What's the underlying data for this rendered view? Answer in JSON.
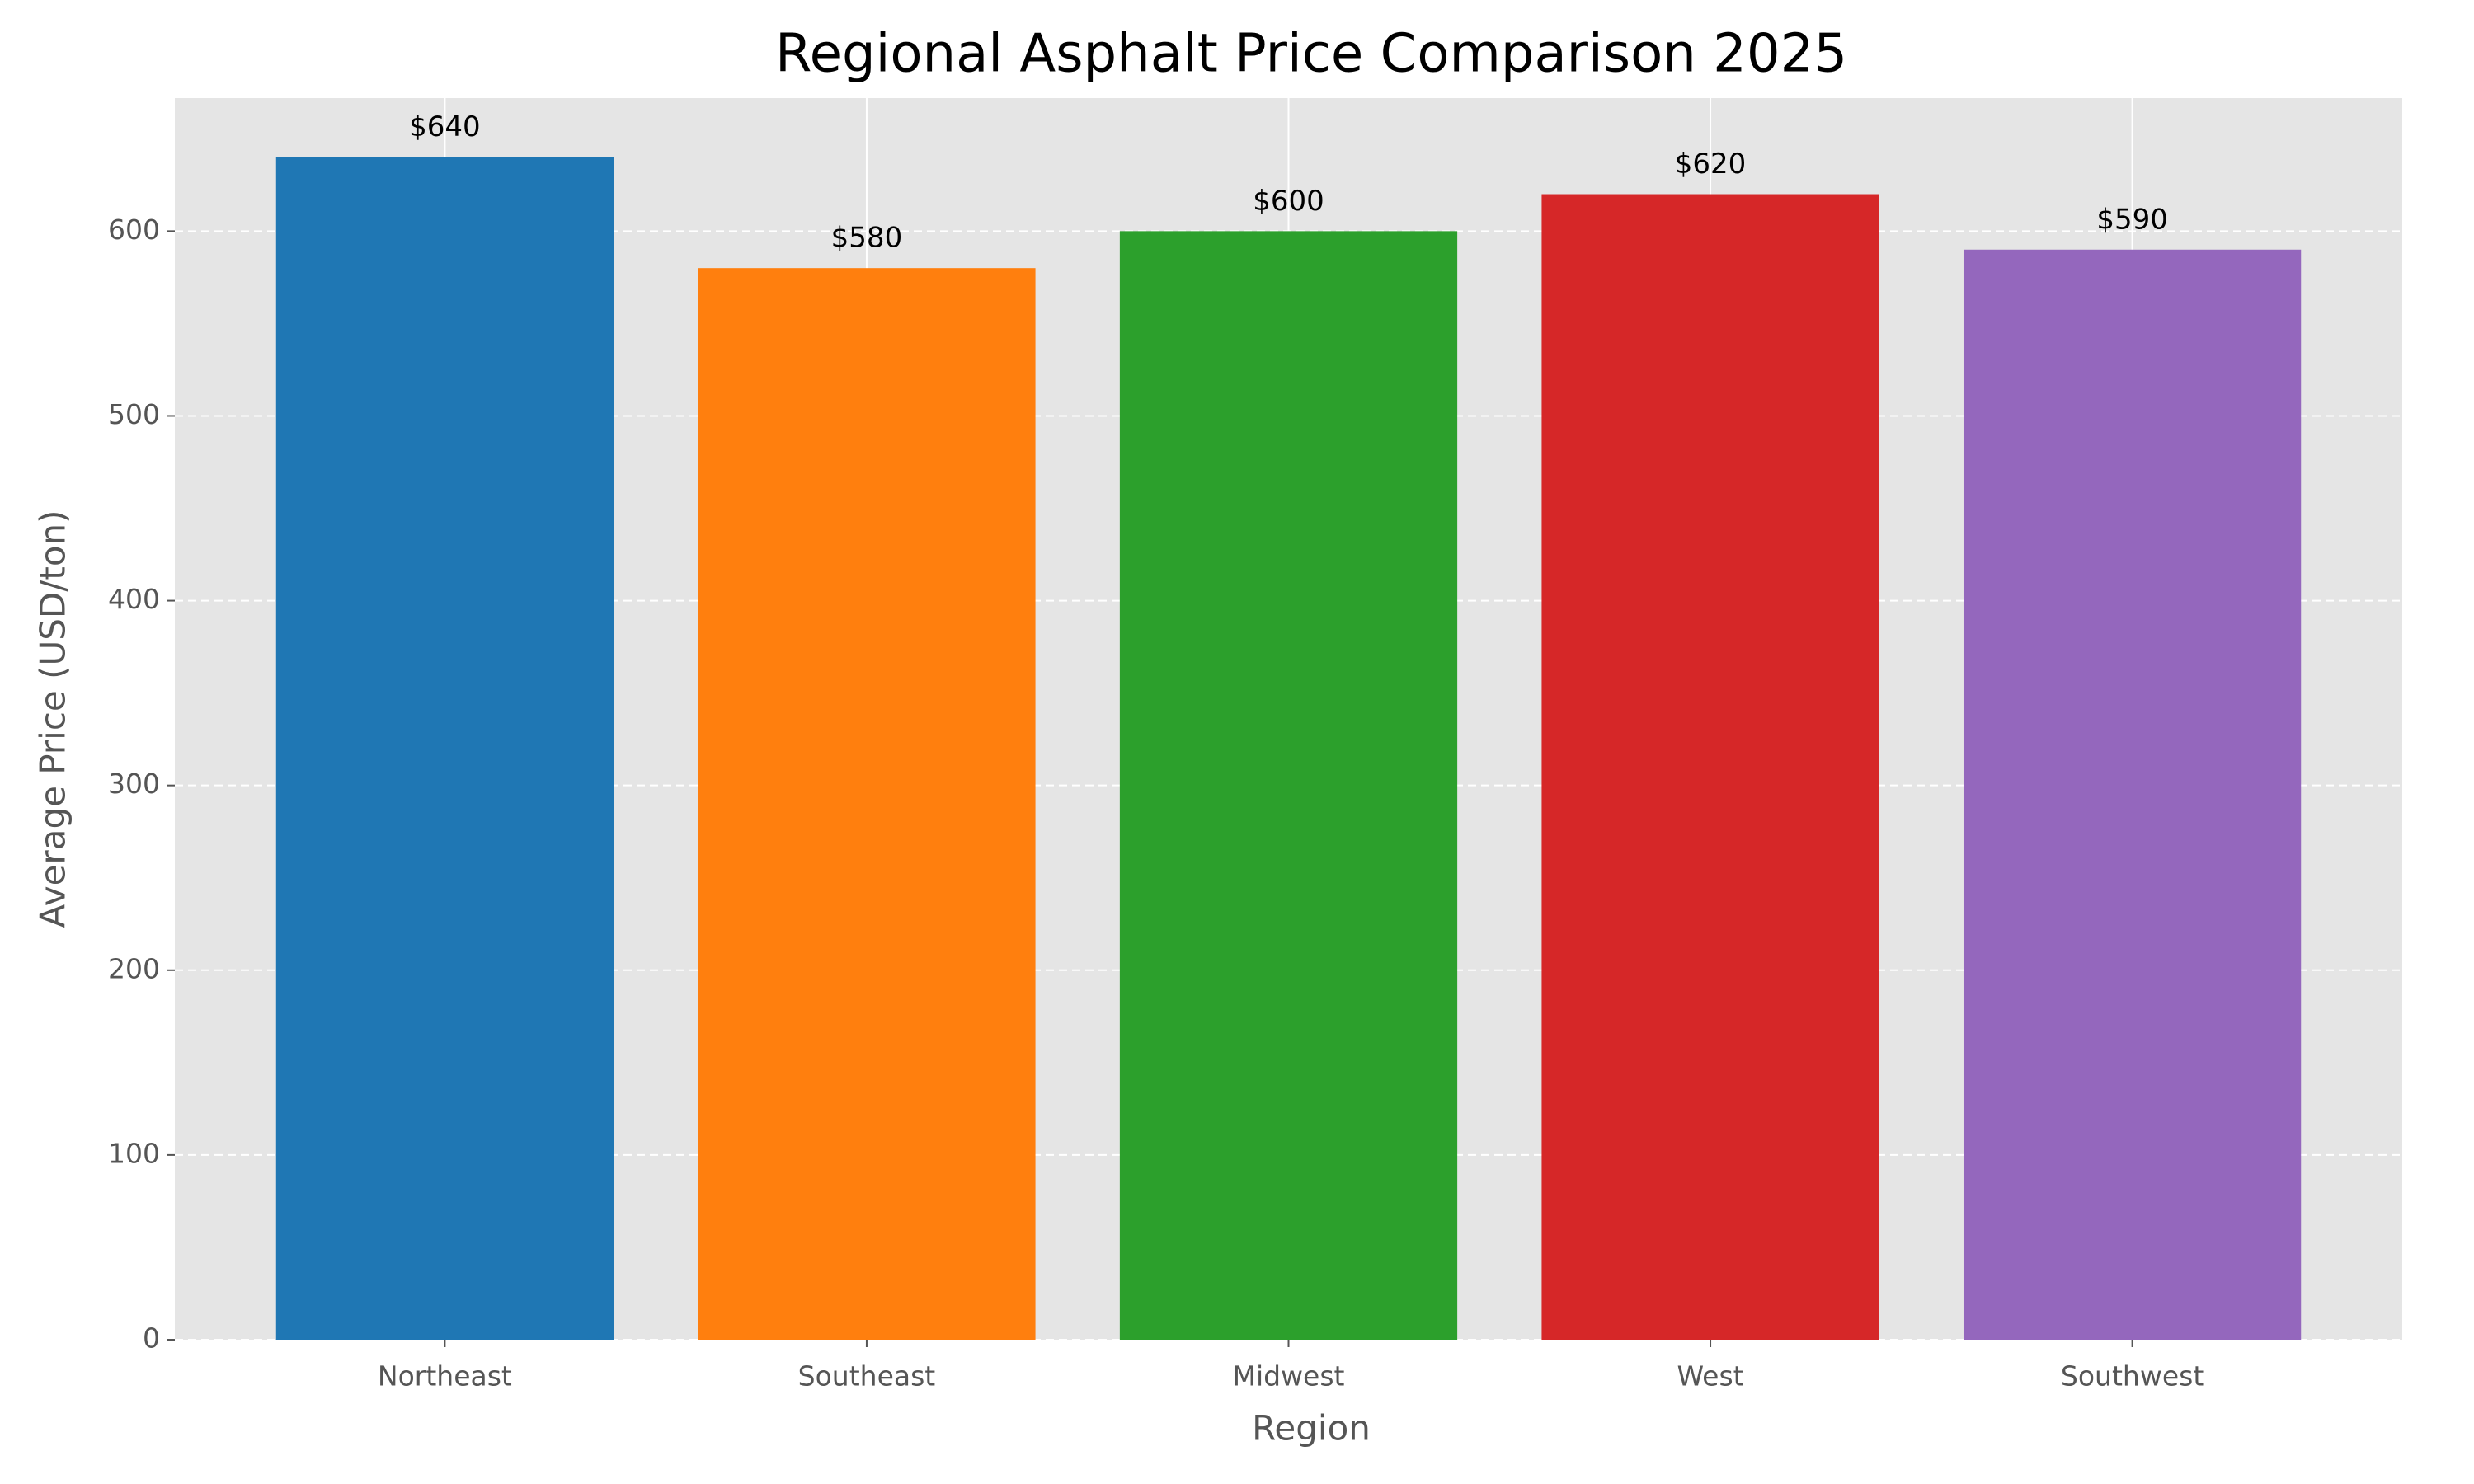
{
  "chart_data": {
    "type": "bar",
    "title": "Regional Asphalt Price Comparison 2025",
    "x_label": "Region",
    "y_label": "Average Price (USD/ton)",
    "categories": [
      "Northeast",
      "Southeast",
      "Midwest",
      "West",
      "Southwest"
    ],
    "values": [
      640,
      580,
      600,
      620,
      590
    ],
    "value_labels": [
      "$640",
      "$580",
      "$600",
      "$620",
      "$590"
    ],
    "colors": [
      "#1f77b4",
      "#ff7f0e",
      "#2ca02c",
      "#d62728",
      "#9467bd"
    ],
    "ylim": [
      0,
      672
    ],
    "yticks": [
      0,
      100,
      200,
      300,
      400,
      500,
      600
    ],
    "grid": true
  }
}
